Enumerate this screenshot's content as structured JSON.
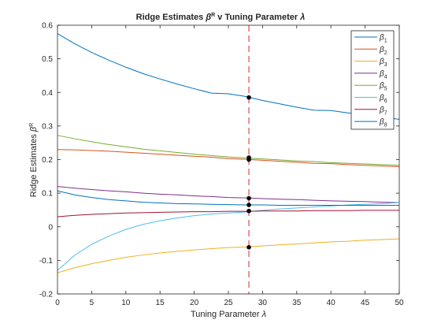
{
  "chart_data": {
    "type": "line",
    "title": "Ridge Estimates β^R v Tuning Parameter λ",
    "title_parts": [
      "Ridge Estimates ",
      "β",
      "R",
      " v Tuning Parameter ",
      "λ"
    ],
    "xlabel": "Tuning Parameter λ",
    "xlabel_parts": [
      "Tuning Parameter ",
      "λ"
    ],
    "ylabel": "Ridge Estimates β^R",
    "ylabel_parts": [
      "Ridge Estimates ",
      "β",
      "R"
    ],
    "xlim": [
      0,
      50
    ],
    "ylim": [
      -0.2,
      0.6
    ],
    "xticks": [
      0,
      5,
      10,
      15,
      20,
      25,
      30,
      35,
      40,
      45,
      50
    ],
    "yticks": [
      -0.2,
      -0.1,
      0,
      0.1,
      0.2,
      0.3,
      0.4,
      0.5,
      0.6
    ],
    "ytick_labels": [
      "-0.2",
      "-0.1",
      "0",
      "0.1",
      "0.2",
      "0.3",
      "0.4",
      "0.5",
      "0.6"
    ],
    "grid": false,
    "legend_position": "top-right",
    "selected_lambda": 28,
    "x": [
      0,
      2.5,
      5,
      7.5,
      10,
      12.5,
      15,
      17.5,
      20,
      22.5,
      25,
      27.5,
      30,
      32.5,
      35,
      37.5,
      40,
      42.5,
      45,
      47.5,
      50
    ],
    "series": [
      {
        "name": "β1",
        "symbol": "β",
        "sub": "1",
        "color": "#0072BD",
        "values": [
          0.575,
          0.545,
          0.519,
          0.496,
          0.475,
          0.456,
          0.44,
          0.425,
          0.411,
          0.398,
          0.396,
          0.388,
          0.376,
          0.366,
          0.356,
          0.347,
          0.346,
          0.339,
          0.332,
          0.326,
          0.32
        ]
      },
      {
        "name": "β2",
        "symbol": "β",
        "sub": "2",
        "color": "#D95319",
        "values": [
          0.23,
          0.229,
          0.227,
          0.225,
          0.222,
          0.219,
          0.216,
          0.213,
          0.21,
          0.207,
          0.203,
          0.201,
          0.198,
          0.195,
          0.192,
          0.189,
          0.188,
          0.185,
          0.183,
          0.181,
          0.179
        ]
      },
      {
        "name": "β3",
        "symbol": "β",
        "sub": "3",
        "color": "#EDB120",
        "values": [
          -0.137,
          -0.122,
          -0.11,
          -0.1,
          -0.091,
          -0.084,
          -0.078,
          -0.073,
          -0.069,
          -0.065,
          -0.062,
          -0.06,
          -0.057,
          -0.054,
          -0.051,
          -0.048,
          -0.045,
          -0.043,
          -0.04,
          -0.038,
          -0.036
        ]
      },
      {
        "name": "β4",
        "symbol": "β",
        "sub": "4",
        "color": "#7E2F8E",
        "values": [
          0.12,
          0.115,
          0.111,
          0.107,
          0.104,
          0.1,
          0.097,
          0.095,
          0.092,
          0.09,
          0.087,
          0.086,
          0.084,
          0.082,
          0.081,
          0.079,
          0.077,
          0.076,
          0.075,
          0.073,
          0.072
        ]
      },
      {
        "name": "β5",
        "symbol": "β",
        "sub": "5",
        "color": "#77AC30",
        "values": [
          0.272,
          0.262,
          0.253,
          0.245,
          0.238,
          0.231,
          0.226,
          0.221,
          0.216,
          0.212,
          0.208,
          0.205,
          0.202,
          0.199,
          0.196,
          0.194,
          0.191,
          0.189,
          0.187,
          0.185,
          0.183
        ]
      },
      {
        "name": "β6",
        "symbol": "β",
        "sub": "6",
        "color": "#4DBEEE",
        "values": [
          -0.13,
          -0.085,
          -0.052,
          -0.028,
          -0.008,
          0.007,
          0.018,
          0.026,
          0.033,
          0.038,
          0.041,
          0.044,
          0.049,
          0.053,
          0.056,
          0.059,
          0.062,
          0.065,
          0.067,
          0.069,
          0.072
        ]
      },
      {
        "name": "β7",
        "symbol": "β",
        "sub": "7",
        "color": "#A2142F",
        "values": [
          0.03,
          0.034,
          0.037,
          0.039,
          0.041,
          0.042,
          0.043,
          0.044,
          0.045,
          0.045,
          0.046,
          0.046,
          0.047,
          0.047,
          0.047,
          0.048,
          0.048,
          0.048,
          0.049,
          0.049,
          0.049
        ]
      },
      {
        "name": "β8",
        "symbol": "β",
        "sub": "8",
        "color": "#0072BD",
        "values": [
          0.107,
          0.095,
          0.087,
          0.081,
          0.077,
          0.073,
          0.071,
          0.069,
          0.068,
          0.067,
          0.066,
          0.065,
          0.065,
          0.064,
          0.064,
          0.064,
          0.064,
          0.064,
          0.064,
          0.064,
          0.064
        ]
      }
    ],
    "markers": [
      {
        "x": 28,
        "y": 0.385
      },
      {
        "x": 28,
        "y": 0.206
      },
      {
        "x": 28,
        "y": 0.2
      },
      {
        "x": 28,
        "y": 0.085
      },
      {
        "x": 28,
        "y": 0.065
      },
      {
        "x": 28,
        "y": 0.047
      },
      {
        "x": 28,
        "y": -0.061
      }
    ],
    "colors": {
      "axis": "#262626",
      "marker": "#000000",
      "reference_line": "#D62728"
    }
  }
}
